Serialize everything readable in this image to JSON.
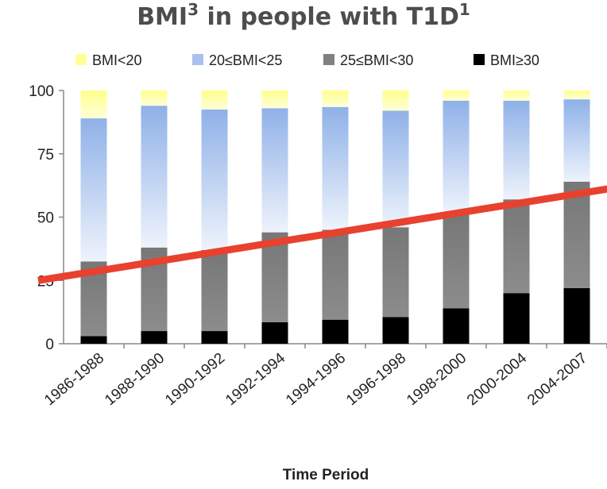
{
  "title": {
    "text": "BMI",
    "sup1": "3",
    "mid": " in people with T1D",
    "sup2": "1"
  },
  "chart_data": {
    "type": "bar",
    "stacked": true,
    "categories": [
      "1986-1988",
      "1988-1990",
      "1990-1992",
      "1992-1994",
      "1994-1996",
      "1996-1998",
      "1998-2000",
      "2000-2004",
      "2004-2007"
    ],
    "series": [
      {
        "name": "BMI≥30",
        "color": "#000000",
        "values": [
          3,
          5,
          5,
          8.5,
          9.5,
          10.5,
          14,
          20,
          22
        ]
      },
      {
        "name": "25≤BMI<30",
        "color": "#808080",
        "values": [
          29.5,
          33,
          32,
          35.5,
          35.5,
          35.5,
          37.5,
          37,
          42
        ]
      },
      {
        "name": "20≤BMI<25",
        "color": "#a9c1ec",
        "values": [
          56.5,
          56,
          55.5,
          49,
          48.5,
          46,
          44.5,
          39,
          32.5
        ]
      },
      {
        "name": "BMI<20",
        "color": "#ffff99",
        "values": [
          11,
          6,
          7.5,
          7,
          6.5,
          8,
          4,
          4,
          3.5
        ]
      }
    ],
    "legend_order": [
      "BMI<20",
      "20≤BMI<25",
      "25≤BMI<30",
      "BMI≥30"
    ],
    "legend_position": "top",
    "xlabel": "Time Period",
    "ylabel": "",
    "ylim": [
      0,
      100
    ],
    "yticks": [
      0,
      25,
      50,
      75,
      100
    ],
    "trend_line": {
      "color": "#e8412e",
      "from": [
        0.5,
        28.5
      ],
      "to": [
        9.5,
        63
      ]
    },
    "grid": false
  }
}
